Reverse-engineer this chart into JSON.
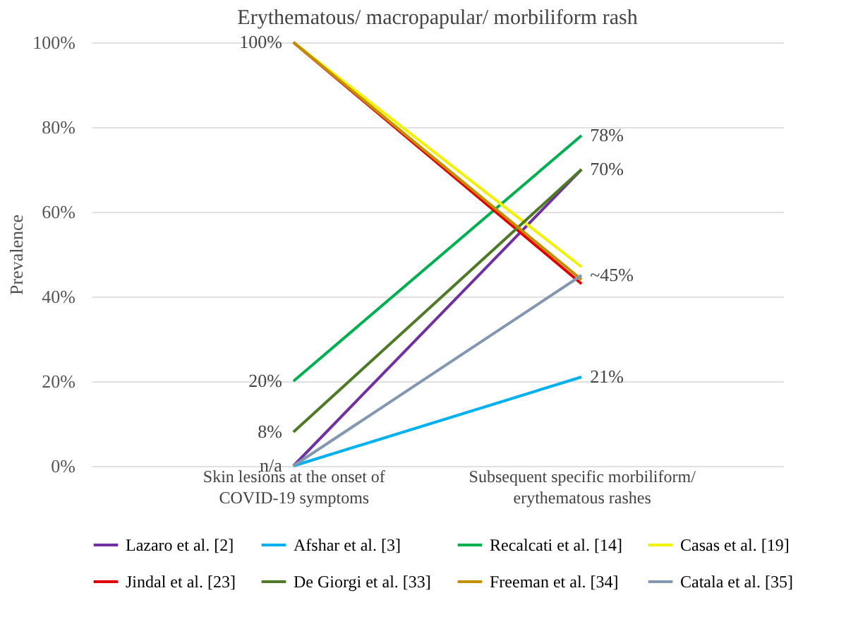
{
  "chart_data": {
    "type": "line",
    "title": "Erythematous/ macropapular/ morbiliform rash",
    "ylabel": "Prevalence",
    "categories": [
      "Skin lesions at the onset of COVID-19 symptoms",
      "Subsequent specific morbiliform/ erythematous rashes"
    ],
    "series": [
      {
        "name": "Lazaro et al. [2]",
        "color": "#7030a0",
        "values": [
          0,
          70
        ]
      },
      {
        "name": "Afshar et al. [3]",
        "color": "#00b0f0",
        "values": [
          0,
          21
        ]
      },
      {
        "name": "Recalcati et al. [14]",
        "color": "#00b050",
        "values": [
          20,
          78
        ]
      },
      {
        "name": "Casas et al. [19]",
        "color": "#f2f200",
        "values": [
          100,
          47
        ]
      },
      {
        "name": "Jindal et al. [23]",
        "color": "#e00000",
        "values": [
          100,
          43
        ]
      },
      {
        "name": "De Giorgi et al. [33]",
        "color": "#4e7a28",
        "values": [
          8,
          70
        ]
      },
      {
        "name": "Freeman et al. [34]",
        "color": "#c09000",
        "values": [
          100,
          44
        ]
      },
      {
        "name": "Catala et al. [35]",
        "color": "#8497b0",
        "values": [
          0,
          45
        ]
      }
    ],
    "ylim": [
      0,
      100
    ],
    "yticks": [
      {
        "value": 0,
        "label": "0%"
      },
      {
        "value": 20,
        "label": "20%"
      },
      {
        "value": 40,
        "label": "40%"
      },
      {
        "value": 60,
        "label": "60%"
      },
      {
        "value": 80,
        "label": "80%"
      },
      {
        "value": 100,
        "label": "100%"
      }
    ],
    "annotations": [
      {
        "text": "100%",
        "x": "Skin lesions at the onset of COVID-19 symptoms",
        "y": 100
      },
      {
        "text": "20%",
        "x": "Skin lesions at the onset of COVID-19 symptoms",
        "y": 20
      },
      {
        "text": "8%",
        "x": "Skin lesions at the onset of COVID-19 symptoms",
        "y": 8
      },
      {
        "text": "n/a",
        "x": "Skin lesions at the onset of COVID-19 symptoms",
        "y": 0
      },
      {
        "text": "78%",
        "x": "Subsequent specific morbiliform/ erythematous rashes",
        "y": 78
      },
      {
        "text": "70%",
        "x": "Subsequent specific morbiliform/ erythematous rashes",
        "y": 70
      },
      {
        "text": "~45%",
        "x": "Subsequent specific morbiliform/ erythematous rashes",
        "y": 45
      },
      {
        "text": "21%",
        "x": "Subsequent specific morbiliform/ erythematous rashes",
        "y": 21
      }
    ],
    "grid": "y",
    "legend": "bottom",
    "marker": "none",
    "line_style": "solid"
  }
}
